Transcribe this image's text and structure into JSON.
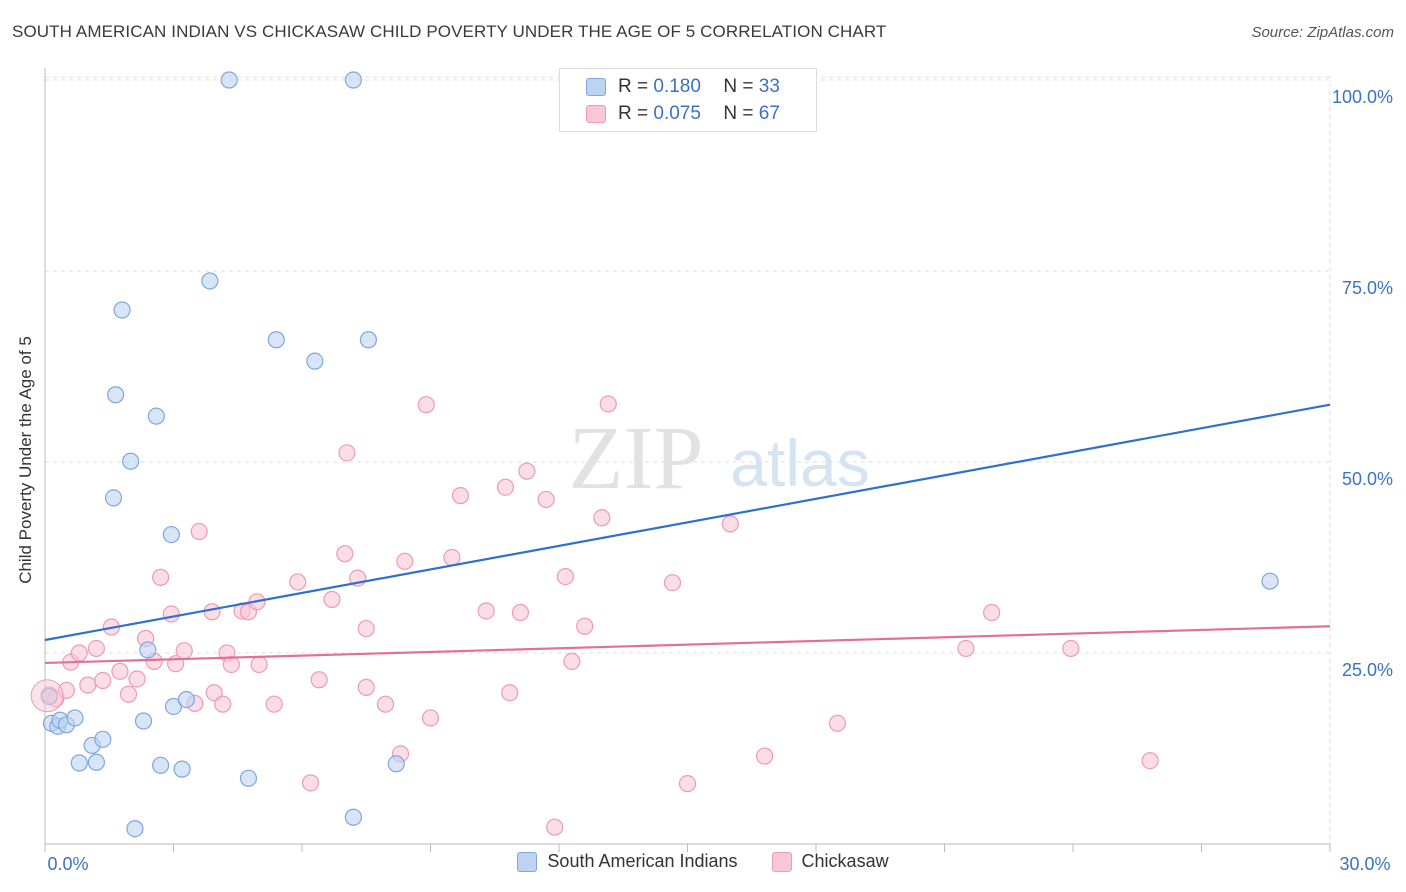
{
  "header": {
    "title": "SOUTH AMERICAN INDIAN VS CHICKASAW CHILD POVERTY UNDER THE AGE OF 5 CORRELATION CHART",
    "source": "Source: ZipAtlas.com"
  },
  "watermark": {
    "part1": "ZIP",
    "part2": "atlas"
  },
  "legend": {
    "r_label": "R =",
    "n_label": "N =",
    "rows": [
      {
        "r": "0.180",
        "n": "33"
      },
      {
        "r": "0.075",
        "n": "67"
      }
    ]
  },
  "colors": {
    "blue_fill": "#bcd3f2",
    "blue_stroke": "#7ea6e0",
    "blue_line": "#2f6fd0",
    "pink_fill": "#f8c7d6",
    "pink_stroke": "#ee9ab5",
    "pink_line": "#e0709a",
    "tick_label": "#3a72c4"
  },
  "chart_data": {
    "type": "scatter",
    "title": "SOUTH AMERICAN INDIAN VS CHICKASAW CHILD POVERTY UNDER THE AGE OF 5 CORRELATION CHART",
    "xlabel": "",
    "ylabel": "Child Poverty Under the Age of 5",
    "xlim": [
      0,
      30
    ],
    "ylim": [
      0,
      100
    ],
    "x_tick_labels": [
      "0.0%",
      "30.0%"
    ],
    "y_tick_labels": [
      "25.0%",
      "50.0%",
      "75.0%",
      "100.0%"
    ],
    "y_ticks": [
      25,
      50,
      75,
      100
    ],
    "grid": true,
    "legend_position": "top-center",
    "series": [
      {
        "name": "South American Indians",
        "color": "#7ea6e0",
        "r": 0.18,
        "n": 33,
        "trend": {
          "x": [
            0,
            30
          ],
          "y": [
            26.7,
            57.5
          ]
        },
        "points": [
          [
            0.1,
            19.3
          ],
          [
            0.15,
            15.8
          ],
          [
            0.3,
            15.4
          ],
          [
            0.35,
            16.2
          ],
          [
            0.5,
            15.6
          ],
          [
            0.7,
            16.5
          ],
          [
            0.8,
            10.6
          ],
          [
            1.1,
            12.9
          ],
          [
            1.2,
            10.7
          ],
          [
            1.35,
            13.7
          ],
          [
            1.6,
            45.3
          ],
          [
            1.65,
            58.8
          ],
          [
            1.8,
            69.9
          ],
          [
            2.0,
            50.1
          ],
          [
            2.1,
            2.0
          ],
          [
            2.3,
            16.1
          ],
          [
            2.4,
            25.4
          ],
          [
            2.6,
            56.0
          ],
          [
            2.7,
            10.3
          ],
          [
            2.95,
            40.5
          ],
          [
            3.0,
            18.0
          ],
          [
            3.2,
            9.8
          ],
          [
            3.3,
            18.9
          ],
          [
            4.3,
            103.0
          ],
          [
            3.85,
            73.7
          ],
          [
            4.75,
            8.6
          ],
          [
            5.4,
            66.0
          ],
          [
            6.3,
            63.2
          ],
          [
            7.2,
            103.0
          ],
          [
            7.2,
            3.5
          ],
          [
            7.55,
            66.0
          ],
          [
            8.2,
            10.5
          ],
          [
            28.6,
            34.4
          ]
        ]
      },
      {
        "name": "Chickasaw",
        "color": "#ee9ab5",
        "r": 0.075,
        "n": 67,
        "trend": {
          "x": [
            0,
            30
          ],
          "y": [
            23.7,
            28.5
          ]
        },
        "points": [
          [
            0.1,
            19.5
          ],
          [
            0.25,
            19.0
          ],
          [
            0.5,
            20.1
          ],
          [
            0.6,
            23.8
          ],
          [
            0.8,
            25.0
          ],
          [
            1.0,
            20.8
          ],
          [
            1.2,
            25.6
          ],
          [
            1.35,
            21.4
          ],
          [
            1.55,
            28.4
          ],
          [
            1.75,
            22.6
          ],
          [
            1.95,
            19.6
          ],
          [
            2.15,
            21.6
          ],
          [
            2.35,
            26.9
          ],
          [
            2.55,
            23.9
          ],
          [
            2.7,
            34.9
          ],
          [
            2.95,
            30.1
          ],
          [
            3.05,
            23.6
          ],
          [
            3.25,
            25.3
          ],
          [
            3.5,
            18.4
          ],
          [
            3.6,
            40.9
          ],
          [
            3.9,
            30.4
          ],
          [
            3.95,
            19.8
          ],
          [
            4.15,
            18.3
          ],
          [
            4.25,
            25.0
          ],
          [
            4.35,
            23.5
          ],
          [
            4.6,
            30.5
          ],
          [
            4.75,
            30.4
          ],
          [
            4.95,
            31.7
          ],
          [
            5.0,
            23.5
          ],
          [
            5.35,
            18.3
          ],
          [
            5.9,
            34.3
          ],
          [
            6.2,
            8.0
          ],
          [
            6.4,
            21.5
          ],
          [
            6.7,
            32.0
          ],
          [
            7.0,
            38.0
          ],
          [
            7.05,
            51.2
          ],
          [
            7.3,
            34.8
          ],
          [
            7.5,
            28.2
          ],
          [
            7.5,
            20.5
          ],
          [
            7.95,
            18.3
          ],
          [
            8.3,
            11.8
          ],
          [
            8.4,
            37.0
          ],
          [
            8.9,
            57.5
          ],
          [
            9.0,
            16.5
          ],
          [
            9.5,
            37.5
          ],
          [
            9.7,
            45.6
          ],
          [
            10.3,
            30.5
          ],
          [
            10.75,
            46.7
          ],
          [
            10.85,
            19.8
          ],
          [
            11.1,
            30.3
          ],
          [
            11.25,
            48.8
          ],
          [
            11.7,
            45.1
          ],
          [
            11.9,
            2.2
          ],
          [
            12.15,
            35.0
          ],
          [
            12.3,
            23.9
          ],
          [
            12.6,
            28.5
          ],
          [
            13.0,
            42.7
          ],
          [
            13.15,
            57.6
          ],
          [
            14.65,
            34.2
          ],
          [
            15.0,
            7.9
          ],
          [
            16.0,
            41.9
          ],
          [
            16.8,
            11.5
          ],
          [
            18.5,
            15.8
          ],
          [
            21.5,
            25.6
          ],
          [
            22.1,
            30.3
          ],
          [
            23.95,
            25.6
          ],
          [
            25.8,
            10.9
          ]
        ]
      }
    ]
  },
  "bottom_legend": {
    "items": [
      {
        "label": "South American Indians"
      },
      {
        "label": "Chickasaw"
      }
    ]
  }
}
